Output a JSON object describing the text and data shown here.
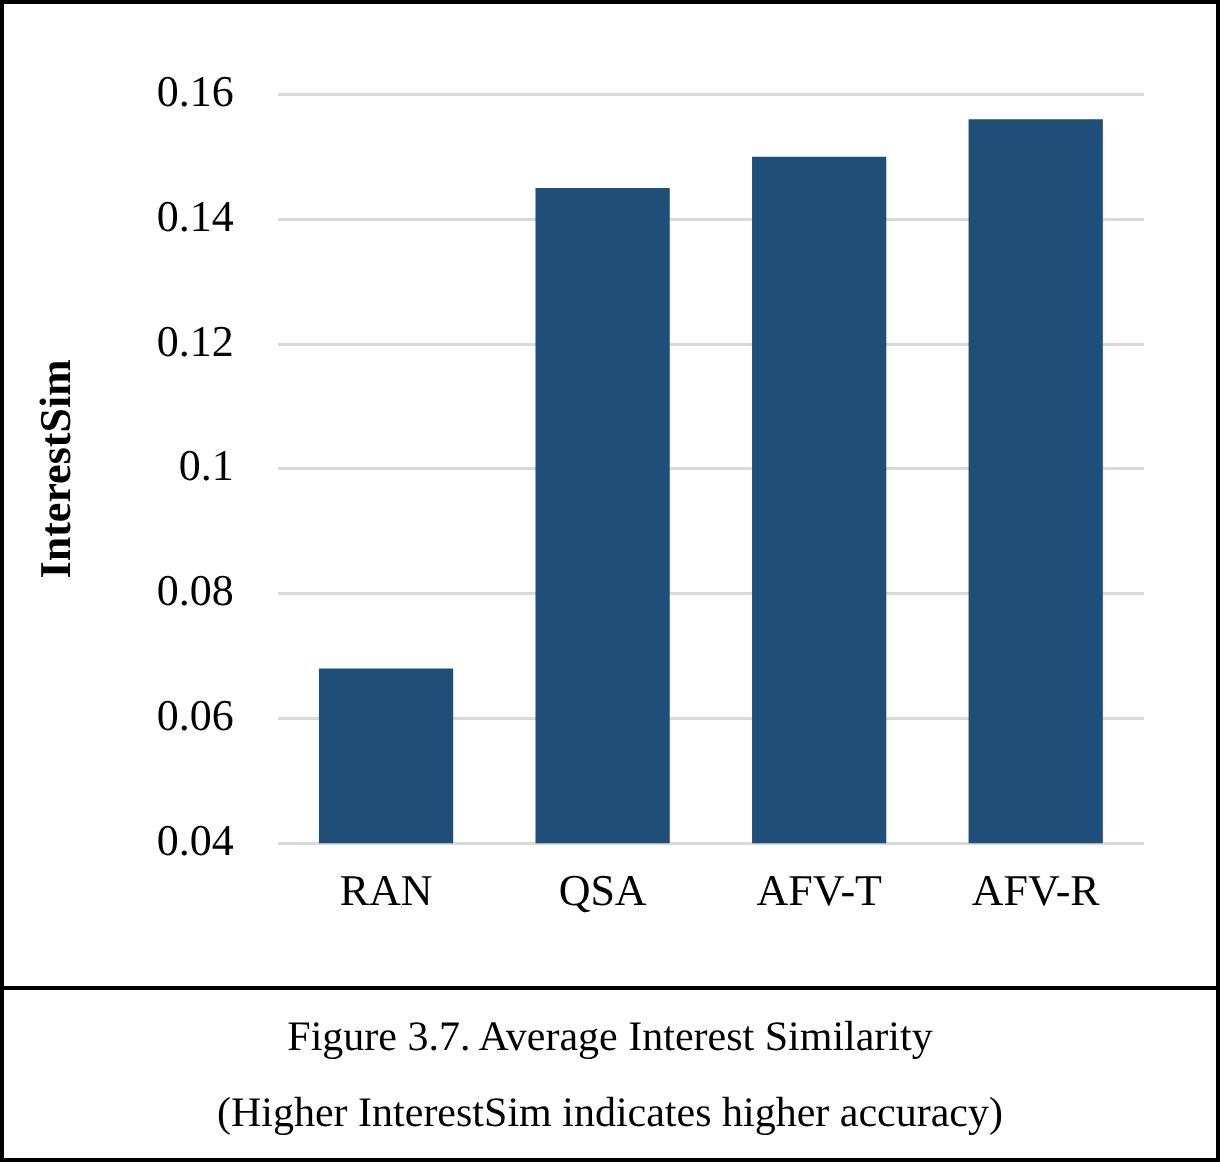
{
  "chart_data": {
    "type": "bar",
    "ylabel": "InterestSim",
    "categories": [
      "RAN",
      "QSA",
      "AFV-T",
      "AFV-R"
    ],
    "values": [
      0.068,
      0.145,
      0.15,
      0.156
    ],
    "color": "#1f4e79",
    "ylim": [
      0.04,
      0.16
    ],
    "yticks": [
      0.04,
      0.06,
      0.08,
      0.1,
      0.12,
      0.14,
      0.16
    ],
    "grid": "y",
    "legend": false,
    "annotations": [
      "Figure 3.7. Average Interest Similarity",
      "(Higher InterestSim indicates higher accuracy)"
    ]
  }
}
